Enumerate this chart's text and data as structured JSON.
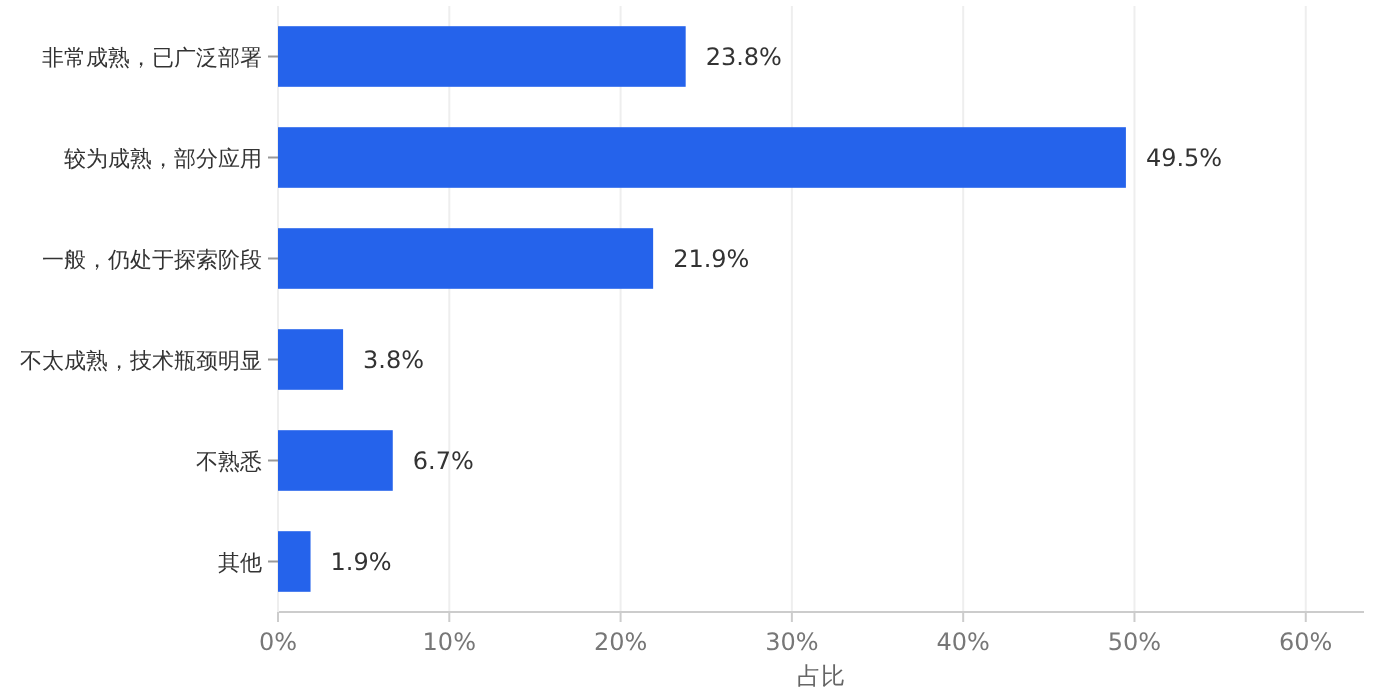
{
  "chart_data": {
    "type": "bar",
    "orientation": "horizontal",
    "xlabel": "占比",
    "categories": [
      "非常成熟，已广泛部署",
      "较为成熟，部分应用",
      "一般，仍处于探索阶段",
      "不太成熟，技术瓶颈明显",
      "不熟悉",
      "其他"
    ],
    "values": [
      23.8,
      49.5,
      21.9,
      3.8,
      6.7,
      1.9
    ],
    "value_labels": [
      "23.8%",
      "49.5%",
      "21.9%",
      "3.8%",
      "6.7%",
      "1.9%"
    ],
    "color": "#2563eb",
    "xlim": [
      0,
      63.4
    ],
    "xticks": [
      {
        "value": 0,
        "label": "0%"
      },
      {
        "value": 10,
        "label": "10%"
      },
      {
        "value": 20,
        "label": "20%"
      },
      {
        "value": 30,
        "label": "30%"
      },
      {
        "value": 40,
        "label": "40%"
      },
      {
        "value": 50,
        "label": "50%"
      },
      {
        "value": 60,
        "label": "60%"
      }
    ],
    "grid": "x"
  }
}
